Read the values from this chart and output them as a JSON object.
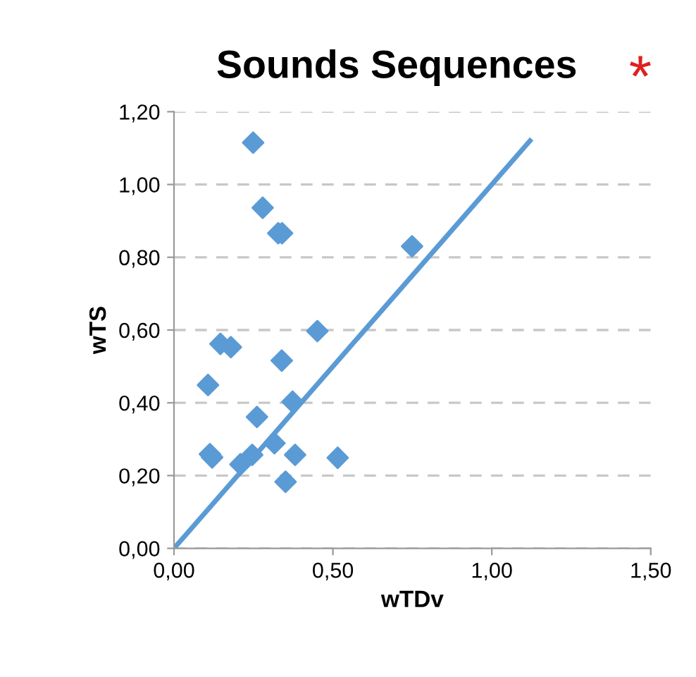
{
  "chart_data": {
    "type": "scatter",
    "title": "Sounds Sequences",
    "xlabel": "wTDv",
    "ylabel": "wTS",
    "annotations": [
      "*"
    ],
    "series": [
      {
        "color": "#5b9bd5",
        "marker": "diamond",
        "x": [
          0.249,
          0.279,
          0.328,
          0.34,
          0.749,
          0.451,
          0.146,
          0.179,
          0.339,
          0.107,
          0.373,
          0.261,
          0.316,
          0.113,
          0.12,
          0.246,
          0.209,
          0.381,
          0.515,
          0.351
        ],
        "values": [
          1.115,
          0.936,
          0.866,
          0.866,
          0.83,
          0.597,
          0.562,
          0.553,
          0.516,
          0.449,
          0.403,
          0.361,
          0.289,
          0.259,
          0.25,
          0.257,
          0.231,
          0.257,
          0.249,
          0.183
        ]
      },
      {
        "type": "line",
        "color": "#5b9bd5",
        "marker": "none",
        "x": [
          0,
          1.12
        ],
        "values": [
          0,
          1.12
        ]
      }
    ],
    "xlim": [
      0,
      1.5
    ],
    "ylim": [
      0,
      1.2
    ],
    "xticks": [
      {
        "value": 0,
        "label": "0,00"
      },
      {
        "value": 0.5,
        "label": "0,50"
      },
      {
        "value": 1,
        "label": "1,00"
      },
      {
        "value": 1.5,
        "label": "1,50"
      }
    ],
    "yticks": [
      {
        "value": 0,
        "label": "0,00"
      },
      {
        "value": 0.2,
        "label": "0,20"
      },
      {
        "value": 0.4,
        "label": "0,40"
      },
      {
        "value": 0.6,
        "label": "0,60"
      },
      {
        "value": 0.8,
        "label": "0,80"
      },
      {
        "value": 1,
        "label": "1,00"
      },
      {
        "value": 1.2,
        "label": "1,20"
      }
    ],
    "grid": "y",
    "legend": false
  }
}
